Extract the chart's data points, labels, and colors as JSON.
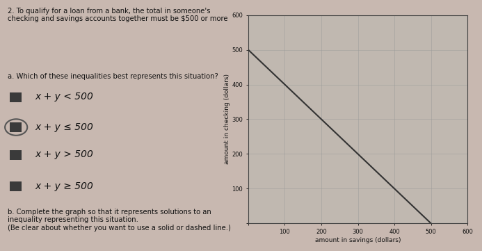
{
  "title_text": "2. To qualify for a loan from a bank, the total in someone's\nchecking and savings accounts together must be $500 or more",
  "question_text": "a. Which of these inequalities best represents this situation?",
  "options": [
    "x + y < 500",
    "x + y ≤ 500",
    "x + y > 500",
    "x + y ≥ 500"
  ],
  "circle_option": 1,
  "part_b_text": "b. Complete the graph so that it represents solutions to an\ninequality representing this situation.\n(Be clear about whether you want to use a solid or dashed line.)",
  "xlabel": "amount in savings (dollars)",
  "ylabel": "amount in checking (dollars)",
  "xlim": [
    0,
    600
  ],
  "ylim": [
    0,
    600
  ],
  "xticks": [
    0,
    100,
    200,
    300,
    400,
    500,
    600
  ],
  "yticks": [
    0,
    100,
    200,
    300,
    400,
    500,
    600
  ],
  "ytick_labels": [
    "",
    "100",
    "200",
    "300",
    "400",
    "500",
    "600"
  ],
  "line_x": [
    0,
    500
  ],
  "line_y": [
    500,
    0
  ],
  "line_color": "#333333",
  "bg_color": "#c8b8b0",
  "graph_bg": "#c0b8b0",
  "text_color": "#111111",
  "option_box_color": "#3a3a3a",
  "grid_color": "#999999",
  "spine_color": "#444444"
}
